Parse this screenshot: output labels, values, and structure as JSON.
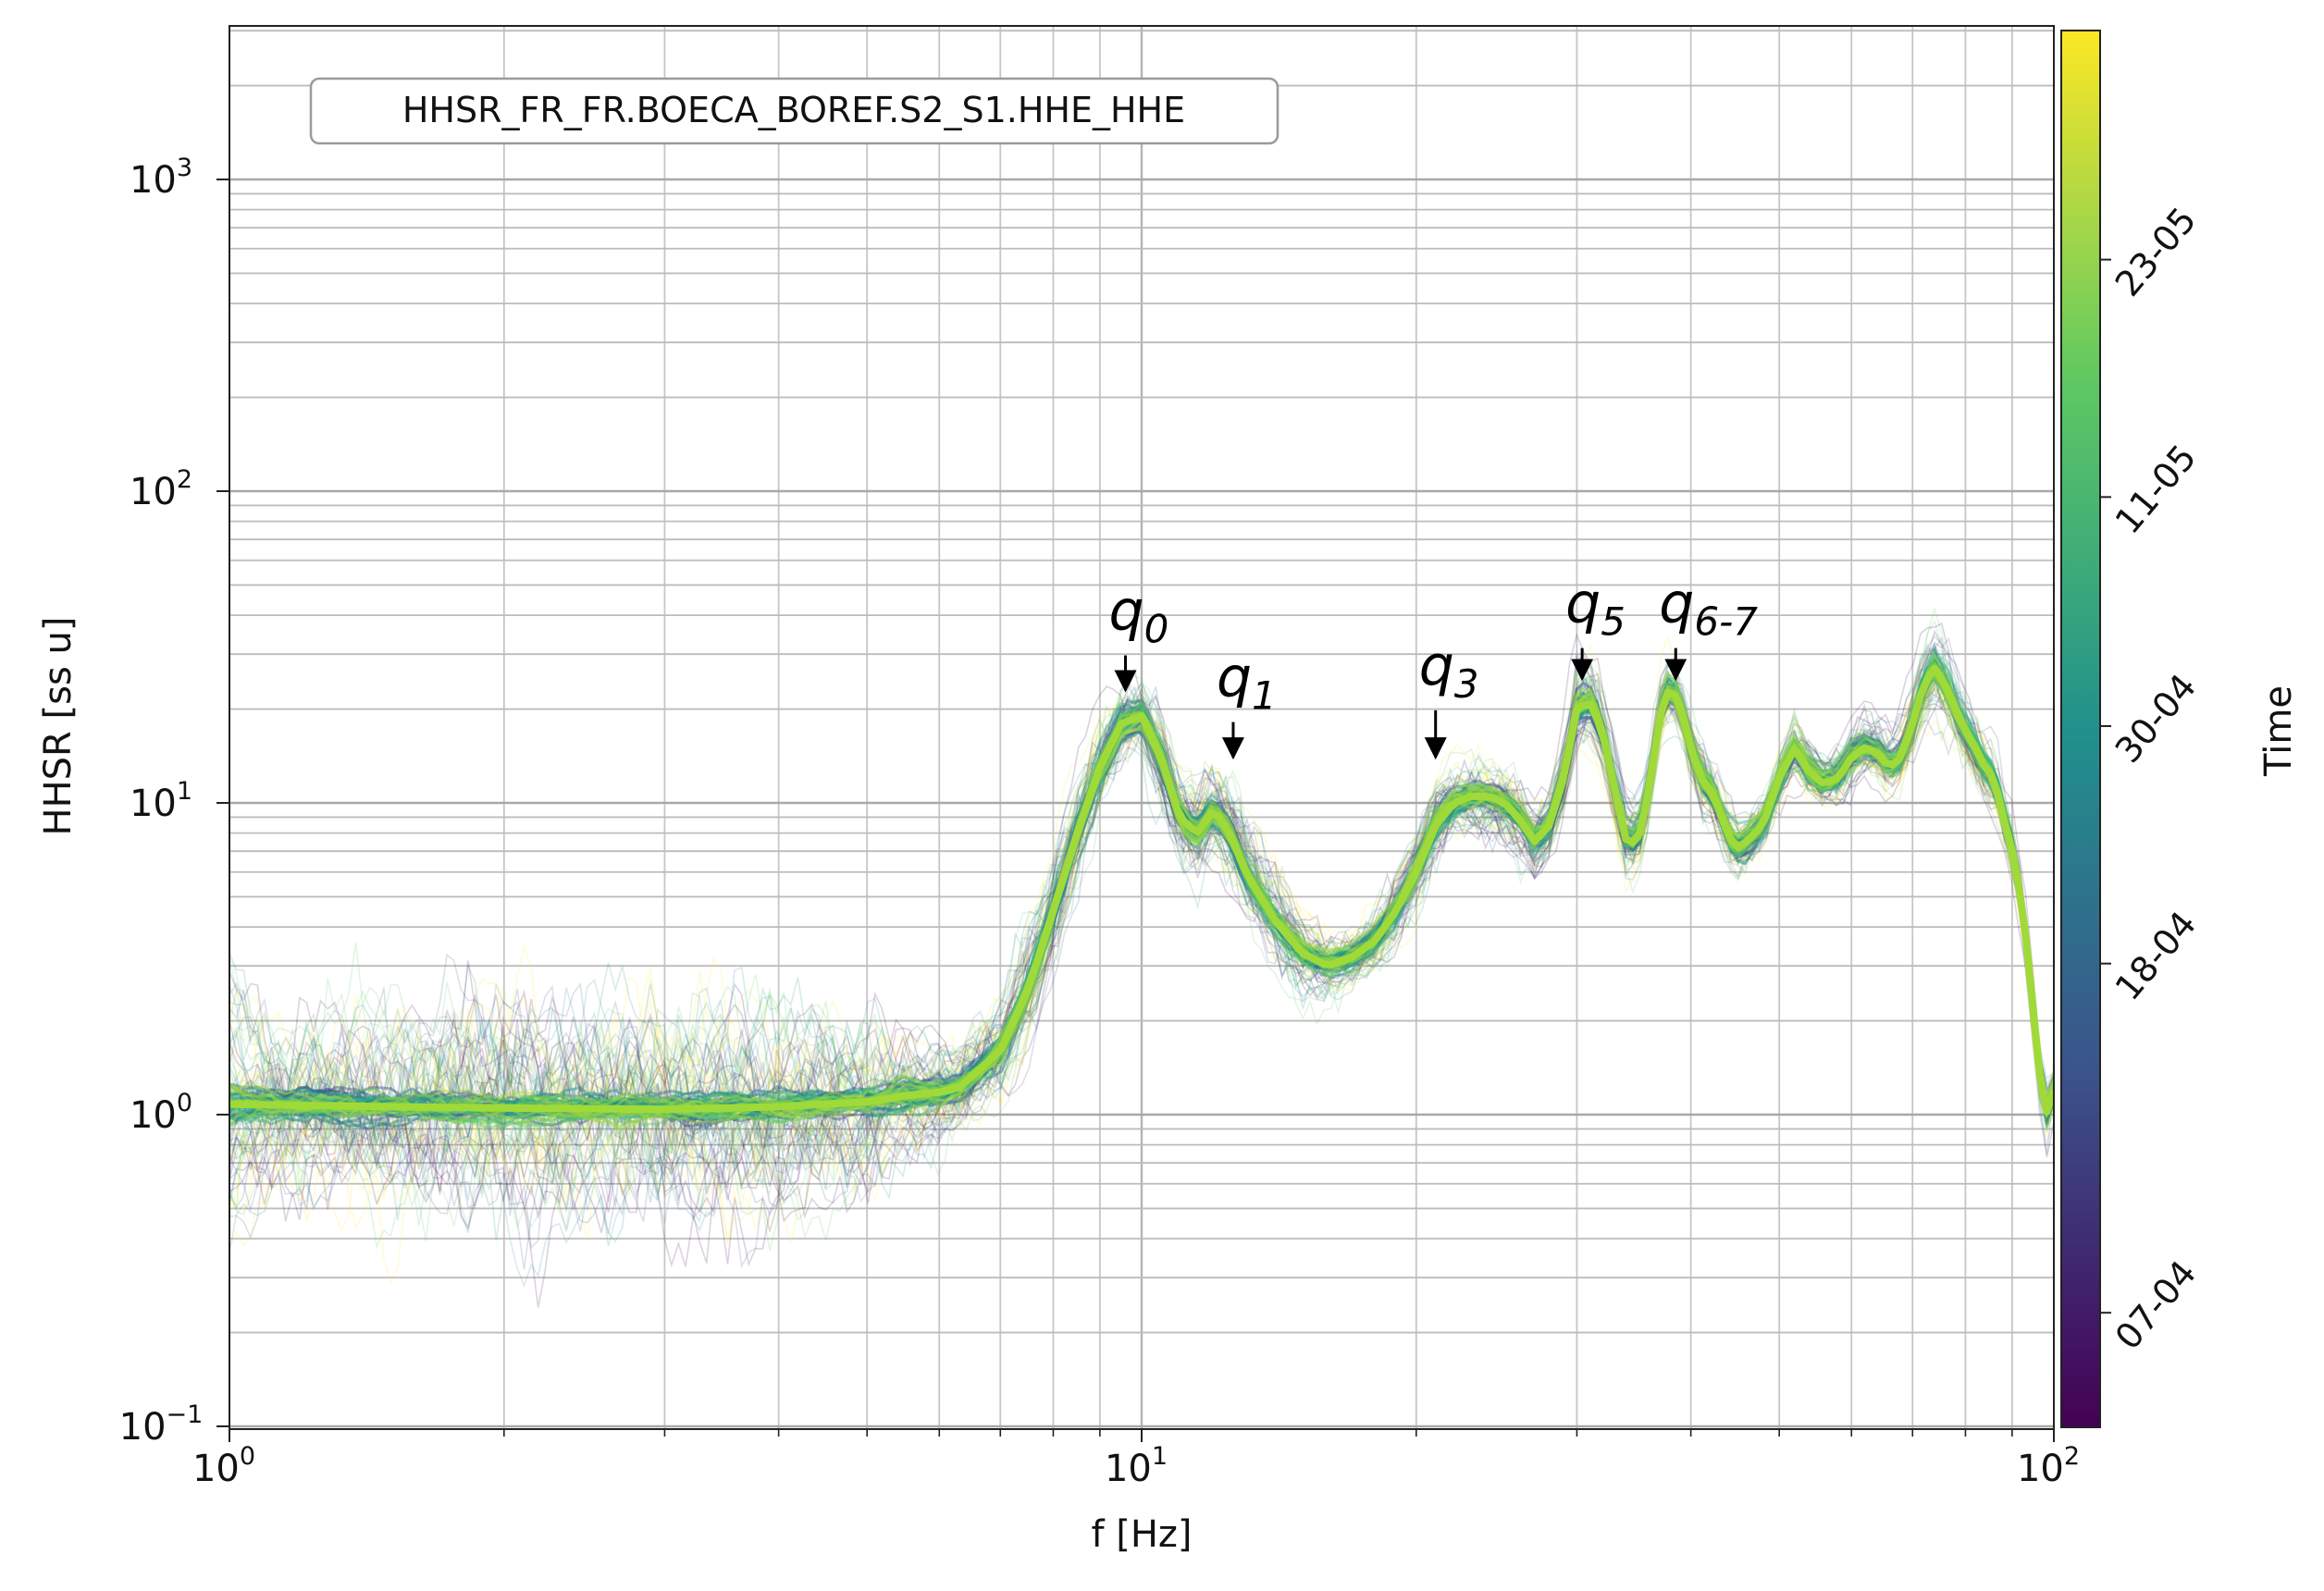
{
  "chart_data": {
    "type": "line",
    "title": "HHSR_FR_FR.BOECA_BOREF.S2_S1.HHE_HHE",
    "xlabel": "f [Hz]",
    "ylabel": "HHSR [ss u]",
    "xscale": "log",
    "yscale": "log",
    "xlim": [
      1,
      100
    ],
    "ylim": [
      0.1,
      3000
    ],
    "grid": true,
    "x_ticks": [
      {
        "value": 1,
        "base": "10",
        "exp": "0"
      },
      {
        "value": 10,
        "base": "10",
        "exp": "1"
      },
      {
        "value": 100,
        "base": "10",
        "exp": "2"
      }
    ],
    "y_ticks": [
      {
        "value": 0.1,
        "base": "10",
        "exp": "−1"
      },
      {
        "value": 1,
        "base": "10",
        "exp": "0"
      },
      {
        "value": 10,
        "base": "10",
        "exp": "1"
      },
      {
        "value": 100,
        "base": "10",
        "exp": "2"
      },
      {
        "value": 1000,
        "base": "10",
        "exp": "3"
      }
    ],
    "colorbar": {
      "label": "Time",
      "colormap": "viridis",
      "colors": [
        "#440154",
        "#3b528b",
        "#21918c",
        "#5ec962",
        "#fde725"
      ],
      "ticks": [
        {
          "label": "07-04",
          "position": 0.082
        },
        {
          "label": "18-04",
          "position": 0.332
        },
        {
          "label": "30-04",
          "position": 0.502
        },
        {
          "label": "11-05",
          "position": 0.666
        },
        {
          "label": "23-05",
          "position": 0.836
        }
      ]
    },
    "main_curve": {
      "color": "#a0da39",
      "x": [
        1,
        1.5,
        2,
        3,
        4,
        5,
        5.5,
        6,
        6.3,
        7,
        7.5,
        8,
        8.5,
        9,
        9.5,
        10,
        10.5,
        11,
        11.5,
        12,
        12.5,
        13,
        14,
        15,
        16,
        17,
        18,
        19,
        20,
        21,
        22,
        23,
        24,
        25,
        26,
        27,
        28,
        29,
        30,
        31,
        32,
        33,
        34,
        35,
        36,
        37,
        38,
        39,
        40,
        41,
        42,
        43,
        44,
        45,
        46,
        47,
        48,
        50,
        52,
        54,
        56,
        58,
        60,
        62,
        64,
        66,
        68,
        70,
        72,
        74,
        76,
        78,
        80,
        82,
        84,
        86,
        88,
        90,
        92,
        94,
        96,
        98,
        100
      ],
      "y": [
        1.08,
        1.06,
        1.05,
        1.04,
        1.06,
        1.1,
        1.15,
        1.18,
        1.22,
        1.6,
        2.5,
        4.5,
        8,
        13,
        18,
        19,
        14,
        9,
        8,
        9.5,
        8,
        6,
        4.2,
        3.3,
        3.0,
        3.2,
        3.6,
        4.5,
        6,
        8.5,
        10,
        10.5,
        10.5,
        10,
        8.8,
        7.5,
        8.5,
        12,
        20,
        21,
        17,
        11,
        7.5,
        7.5,
        11,
        19,
        24,
        20,
        15,
        12,
        11,
        9.5,
        7.8,
        7.2,
        7.5,
        8,
        8.5,
        12,
        15,
        12.5,
        11.5,
        12,
        14,
        15,
        14.5,
        13,
        14,
        18,
        24,
        27,
        24,
        20,
        17,
        15,
        13,
        12,
        9,
        7,
        5,
        3,
        1.5,
        1.0,
        1.2
      ]
    },
    "ensemble_spread": {
      "lower": [
        0.4,
        0.25,
        0.25,
        0.3,
        0.3,
        0.4,
        0.6,
        0.9,
        1.2,
        1.6,
        1.8,
        3.5,
        5,
        8,
        10,
        8,
        5,
        3.5,
        3,
        3.5,
        3.2,
        2.5,
        2.0,
        1.8,
        2.0,
        2.2,
        2.5,
        3,
        4,
        5,
        5.5,
        5,
        5,
        5,
        4.5,
        4.5,
        5,
        6,
        8,
        10,
        8,
        5.5,
        3.5,
        4,
        6,
        10,
        13,
        12,
        9,
        7,
        6.5,
        6,
        5,
        5,
        5.5,
        6,
        6.5,
        8,
        9,
        9,
        8.5,
        8,
        9,
        9.5,
        9,
        9,
        9,
        10,
        14,
        18,
        15,
        12,
        10,
        9,
        8,
        7,
        6,
        4.5,
        3.5,
        2,
        1.0,
        0.6,
        0.8
      ],
      "upper": [
        3,
        3,
        3.5,
        4,
        3.5,
        3,
        3.2,
        3.5,
        4,
        5,
        8,
        14,
        22,
        27,
        26,
        22,
        17,
        14,
        13,
        13,
        12,
        9,
        6.5,
        5,
        4.5,
        4.5,
        5,
        7,
        11,
        14,
        13,
        13,
        14,
        13,
        11,
        10,
        11,
        16,
        27,
        30,
        24,
        16,
        11,
        11,
        16,
        26,
        30,
        25,
        20,
        16,
        14,
        12,
        10,
        9.5,
        10,
        10.5,
        11,
        15,
        19,
        17,
        15,
        16,
        19,
        21,
        20,
        19,
        20,
        26,
        45,
        55,
        45,
        30,
        25,
        22,
        18,
        15,
        11,
        9,
        6.5,
        4,
        2,
        1.4,
        1.5
      ]
    },
    "annotations": [
      {
        "label": "q",
        "subscript": "0",
        "x": 9.6,
        "y_text": 36,
        "y_arrow_end": 23
      },
      {
        "label": "q",
        "subscript": "1",
        "x": 12.6,
        "y_text": 22,
        "y_arrow_end": 14
      },
      {
        "label": "q",
        "subscript": "3",
        "x": 21,
        "y_text": 24,
        "y_arrow_end": 14
      },
      {
        "label": "q",
        "subscript": "5",
        "x": 30.4,
        "y_text": 38,
        "y_arrow_end": 25
      },
      {
        "label": "q",
        "subscript": "6-7",
        "x": 38.5,
        "y_text": 38,
        "y_arrow_end": 25
      }
    ]
  }
}
